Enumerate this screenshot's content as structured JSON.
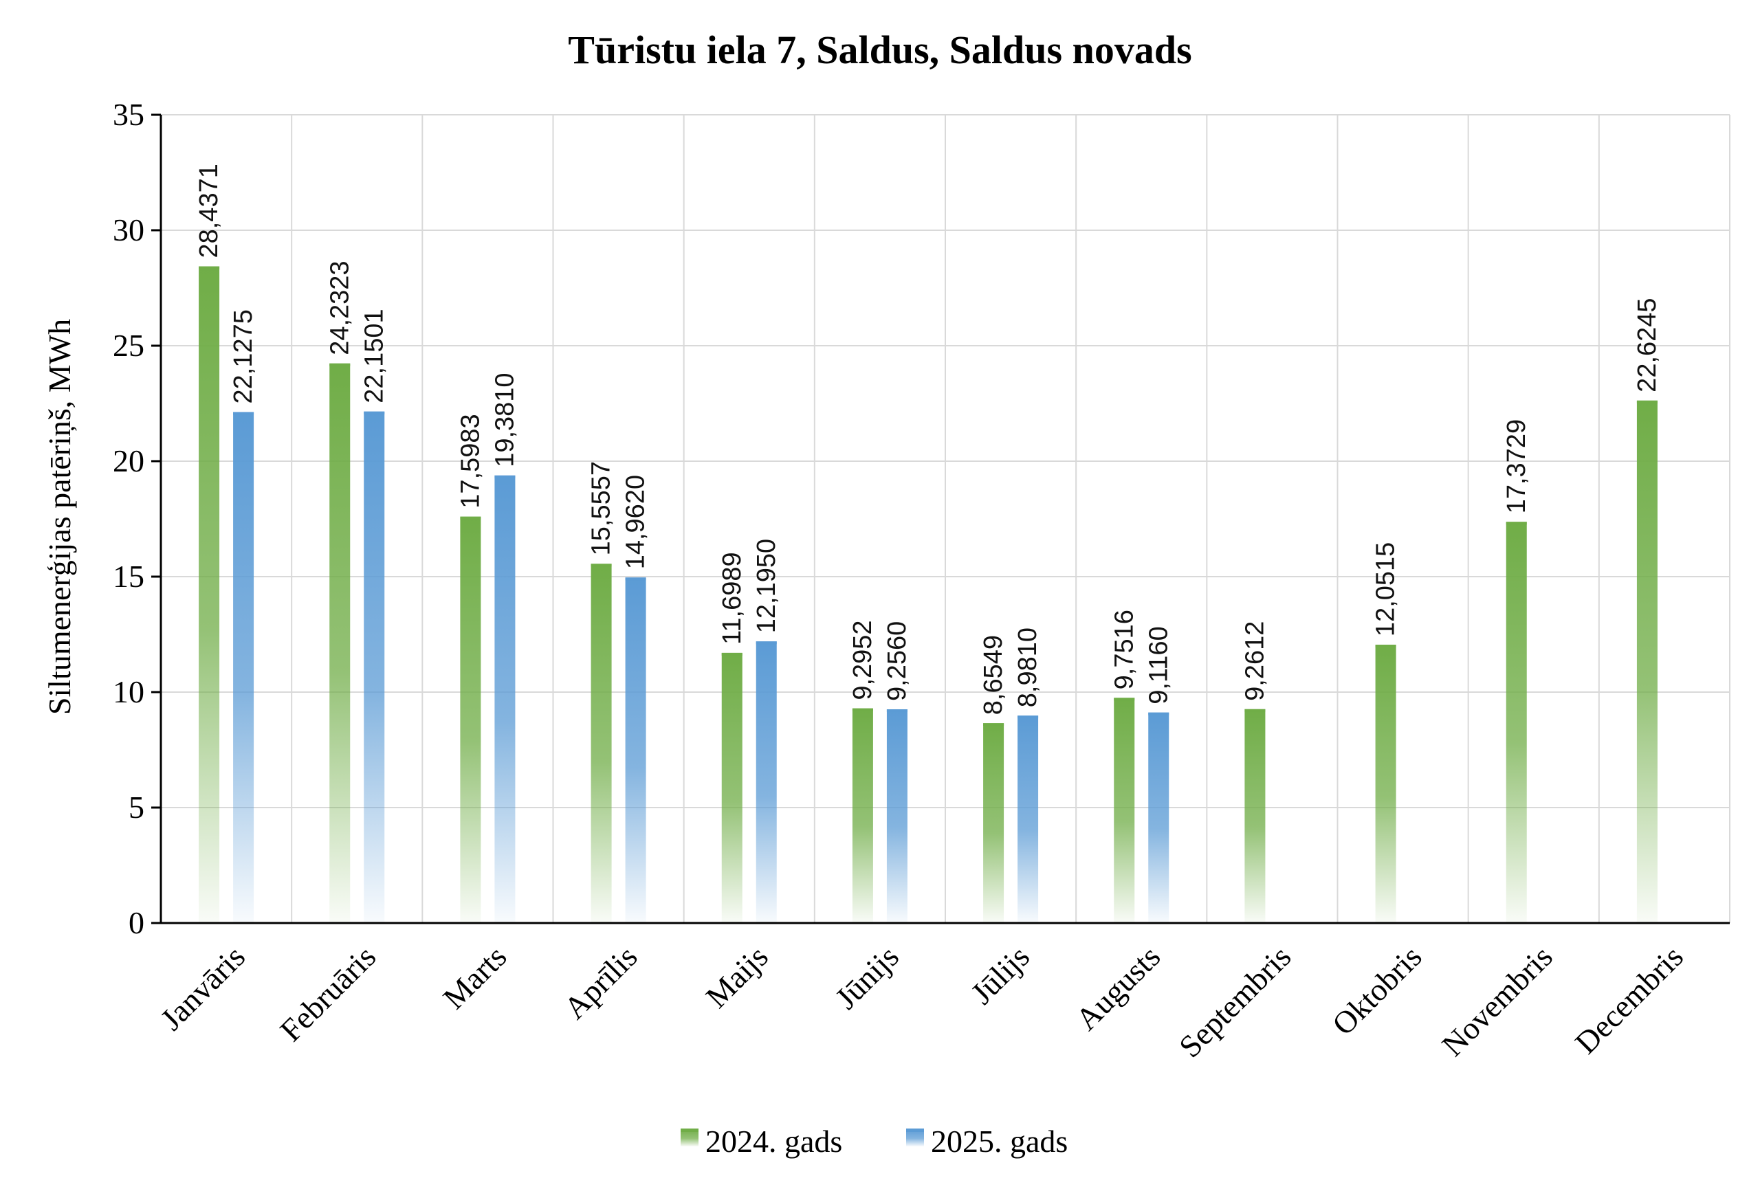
{
  "chart_data": {
    "type": "bar",
    "title": "Tūristu iela 7, Saldus, Saldus novads",
    "ylabel": "Siltumenerģijas patēriņš, MWh",
    "xlabel": "",
    "ylim": [
      0,
      35
    ],
    "yticks": [
      0,
      5,
      10,
      15,
      20,
      25,
      30,
      35
    ],
    "grid": true,
    "legend_position": "bottom",
    "categories": [
      "Janvāris",
      "Februāris",
      "Marts",
      "Aprīlis",
      "Maijs",
      "Jūnijs",
      "Jūlijs",
      "Augusts",
      "Septembris",
      "Oktobris",
      "Novembris",
      "Decembris"
    ],
    "series": [
      {
        "name": "2024. gads",
        "color": "#70ad47",
        "values": [
          28.4371,
          24.2323,
          17.5983,
          15.5557,
          11.6989,
          9.2952,
          8.6549,
          9.7516,
          9.2612,
          12.0515,
          17.3729,
          22.6245
        ],
        "labels": [
          "28,4371",
          "24,2323",
          "17,5983",
          "15,5557",
          "11,6989",
          "9,2952",
          "8,6549",
          "9,7516",
          "9,2612",
          "12,0515",
          "17,3729",
          "22,6245"
        ]
      },
      {
        "name": "2025. gads",
        "color": "#5b9bd5",
        "values": [
          22.1275,
          22.1501,
          19.381,
          14.962,
          12.195,
          9.256,
          8.981,
          9.116,
          null,
          null,
          null,
          null
        ],
        "labels": [
          "22,1275",
          "22,1501",
          "19,3810",
          "14,9620",
          "12,1950",
          "9,2560",
          "8,9810",
          "9,1160",
          null,
          null,
          null,
          null
        ]
      }
    ]
  }
}
